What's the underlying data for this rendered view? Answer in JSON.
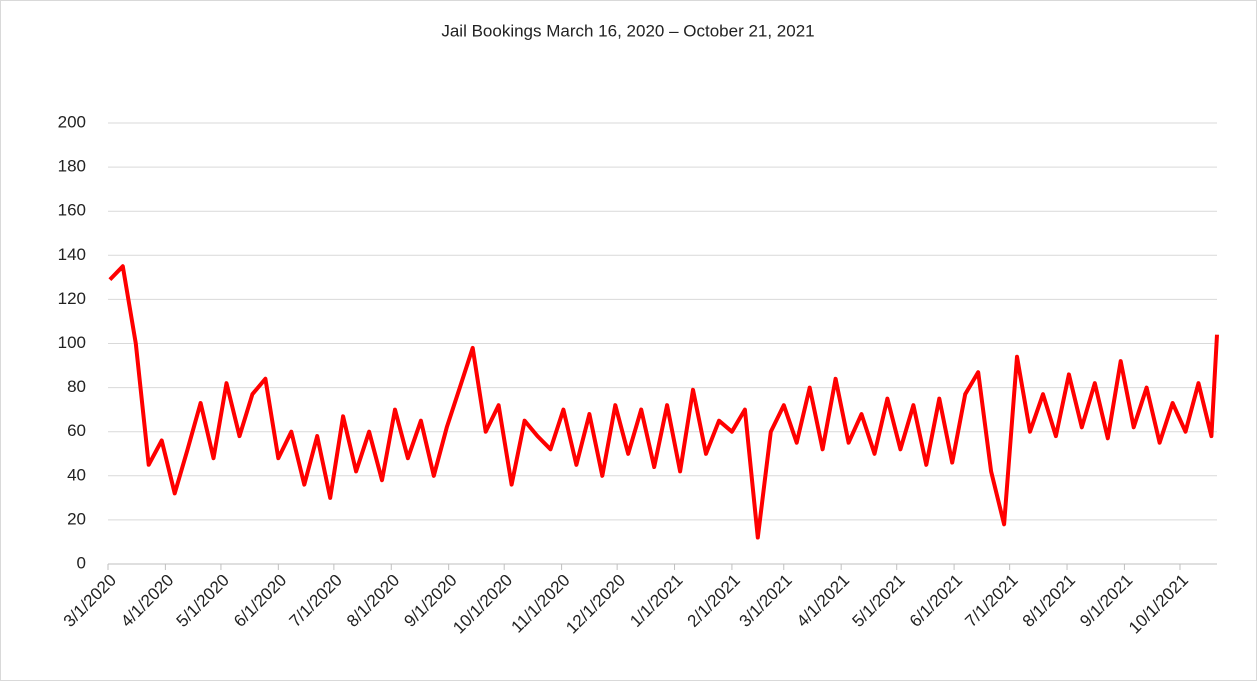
{
  "chart_data": {
    "type": "line",
    "title": "Jail Bookings March 16, 2020 – October 21, 2021",
    "color": "#ff0000",
    "grid": true,
    "ylim": [
      0,
      200
    ],
    "yticks": [
      0,
      20,
      40,
      60,
      80,
      100,
      120,
      140,
      160,
      180,
      200
    ],
    "xlim": [
      "2020-03-01",
      "2021-10-21"
    ],
    "xticks": [
      {
        "value": "2020-03-01",
        "label": "3/1/2020"
      },
      {
        "value": "2020-04-01",
        "label": "4/1/2020"
      },
      {
        "value": "2020-05-01",
        "label": "5/1/2020"
      },
      {
        "value": "2020-06-01",
        "label": "6/1/2020"
      },
      {
        "value": "2020-07-01",
        "label": "7/1/2020"
      },
      {
        "value": "2020-08-01",
        "label": "8/1/2020"
      },
      {
        "value": "2020-09-01",
        "label": "9/1/2020"
      },
      {
        "value": "2020-10-01",
        "label": "10/1/2020"
      },
      {
        "value": "2020-11-01",
        "label": "11/1/2020"
      },
      {
        "value": "2020-12-01",
        "label": "12/1/2020"
      },
      {
        "value": "2021-01-01",
        "label": "1/1/2021"
      },
      {
        "value": "2021-02-01",
        "label": "2/1/2021"
      },
      {
        "value": "2021-03-01",
        "label": "3/1/2021"
      },
      {
        "value": "2021-04-01",
        "label": "4/1/2021"
      },
      {
        "value": "2021-05-01",
        "label": "5/1/2021"
      },
      {
        "value": "2021-06-01",
        "label": "6/1/2021"
      },
      {
        "value": "2021-07-01",
        "label": "7/1/2021"
      },
      {
        "value": "2021-08-01",
        "label": "8/1/2021"
      },
      {
        "value": "2021-09-01",
        "label": "9/1/2021"
      },
      {
        "value": "2021-10-01",
        "label": "10/1/2021"
      }
    ],
    "x": [
      "2020-03-02",
      "2020-03-09",
      "2020-03-16",
      "2020-03-23",
      "2020-03-30",
      "2020-04-06",
      "2020-04-13",
      "2020-04-20",
      "2020-04-27",
      "2020-05-04",
      "2020-05-11",
      "2020-05-18",
      "2020-05-25",
      "2020-06-01",
      "2020-06-08",
      "2020-06-15",
      "2020-06-22",
      "2020-06-29",
      "2020-07-06",
      "2020-07-13",
      "2020-07-20",
      "2020-07-27",
      "2020-08-03",
      "2020-08-10",
      "2020-08-17",
      "2020-08-24",
      "2020-08-31",
      "2020-09-07",
      "2020-09-14",
      "2020-09-21",
      "2020-09-28",
      "2020-10-05",
      "2020-10-12",
      "2020-10-19",
      "2020-10-26",
      "2020-11-02",
      "2020-11-09",
      "2020-11-16",
      "2020-11-23",
      "2020-11-30",
      "2020-12-07",
      "2020-12-14",
      "2020-12-21",
      "2020-12-28",
      "2021-01-04",
      "2021-01-11",
      "2021-01-18",
      "2021-01-25",
      "2021-02-01",
      "2021-02-08",
      "2021-02-15",
      "2021-02-22",
      "2021-03-01",
      "2021-03-08",
      "2021-03-15",
      "2021-03-22",
      "2021-03-29",
      "2021-04-05",
      "2021-04-12",
      "2021-04-19",
      "2021-04-26",
      "2021-05-03",
      "2021-05-10",
      "2021-05-17",
      "2021-05-24",
      "2021-05-31",
      "2021-06-07",
      "2021-06-14",
      "2021-06-21",
      "2021-06-28",
      "2021-07-05",
      "2021-07-12",
      "2021-07-19",
      "2021-07-26",
      "2021-08-02",
      "2021-08-09",
      "2021-08-16",
      "2021-08-23",
      "2021-08-30",
      "2021-09-06",
      "2021-09-13",
      "2021-09-20",
      "2021-09-27",
      "2021-10-04",
      "2021-10-11",
      "2021-10-18",
      "2021-10-21"
    ],
    "values": [
      129,
      135,
      100,
      45,
      56,
      32,
      52,
      73,
      48,
      82,
      58,
      77,
      84,
      48,
      60,
      36,
      58,
      30,
      67,
      42,
      60,
      38,
      70,
      48,
      65,
      40,
      62,
      80,
      98,
      60,
      72,
      36,
      65,
      58,
      52,
      70,
      45,
      68,
      40,
      72,
      50,
      70,
      44,
      72,
      42,
      79,
      50,
      65,
      60,
      70,
      12,
      60,
      72,
      55,
      80,
      52,
      84,
      55,
      68,
      50,
      75,
      52,
      72,
      45,
      75,
      46,
      77,
      87,
      42,
      18,
      94,
      60,
      77,
      58,
      86,
      62,
      82,
      57,
      92,
      62,
      80,
      55,
      73,
      60,
      82,
      58,
      104
    ]
  }
}
